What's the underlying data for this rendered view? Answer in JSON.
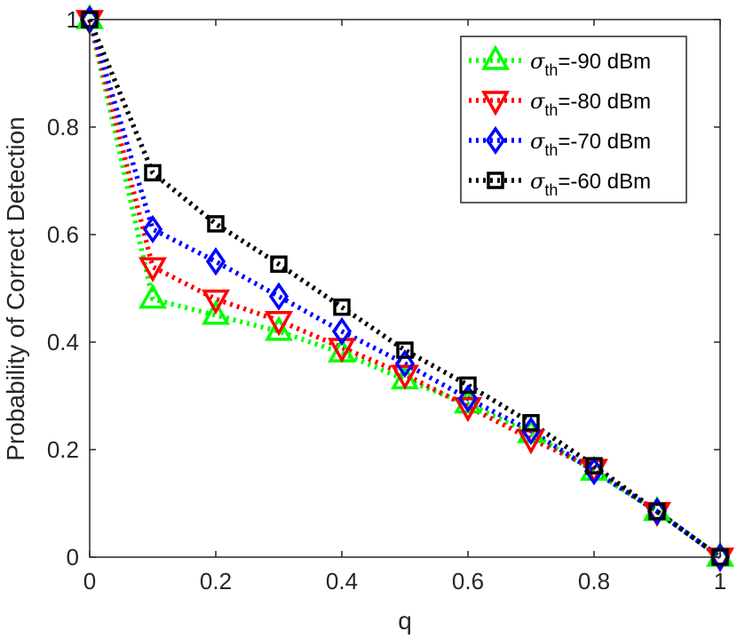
{
  "chart_data": {
    "type": "line",
    "title": "",
    "xlabel": "q",
    "ylabel": "Probability of Correct Detection",
    "xlim": [
      0,
      1
    ],
    "ylim": [
      0,
      1
    ],
    "xticks": [
      0,
      0.2,
      0.4,
      0.6,
      0.8,
      1
    ],
    "yticks": [
      0,
      0.2,
      0.4,
      0.6,
      0.8,
      1
    ],
    "xtick_labels": [
      "0",
      "0.2",
      "0.4",
      "0.6",
      "0.8",
      "1"
    ],
    "ytick_labels": [
      "0",
      "0.2",
      "0.4",
      "0.6",
      "0.8",
      "1"
    ],
    "grid": false,
    "legend_position": "top-right",
    "x": [
      0,
      0.1,
      0.2,
      0.3,
      0.4,
      0.5,
      0.6,
      0.7,
      0.8,
      0.9,
      1
    ],
    "series": [
      {
        "name": "σth=-90 dBm",
        "symbol": "σ",
        "subscript": "th",
        "suffix": "=-90 dBm",
        "color": "#00ff00",
        "marker": "triangle-up",
        "values": [
          1.0,
          0.48,
          0.45,
          0.42,
          0.38,
          0.33,
          0.285,
          0.23,
          0.16,
          0.085,
          0.0
        ]
      },
      {
        "name": "σth=-80 dBm",
        "symbol": "σ",
        "subscript": "th",
        "suffix": "=-80 dBm",
        "color": "#ff0000",
        "marker": "triangle-down",
        "values": [
          1.0,
          0.54,
          0.48,
          0.44,
          0.39,
          0.34,
          0.28,
          0.22,
          0.165,
          0.085,
          0.0
        ]
      },
      {
        "name": "σth=-70 dBm",
        "symbol": "σ",
        "subscript": "th",
        "suffix": "=-70 dBm",
        "color": "#0000ff",
        "marker": "diamond",
        "values": [
          1.0,
          0.61,
          0.55,
          0.485,
          0.42,
          0.36,
          0.295,
          0.235,
          0.16,
          0.085,
          0.0
        ]
      },
      {
        "name": "σth=-60 dBm",
        "symbol": "σ",
        "subscript": "th",
        "suffix": "=-60 dBm",
        "color": "#000000",
        "marker": "square",
        "values": [
          1.0,
          0.715,
          0.62,
          0.545,
          0.465,
          0.385,
          0.32,
          0.25,
          0.17,
          0.085,
          0.0
        ]
      }
    ]
  }
}
